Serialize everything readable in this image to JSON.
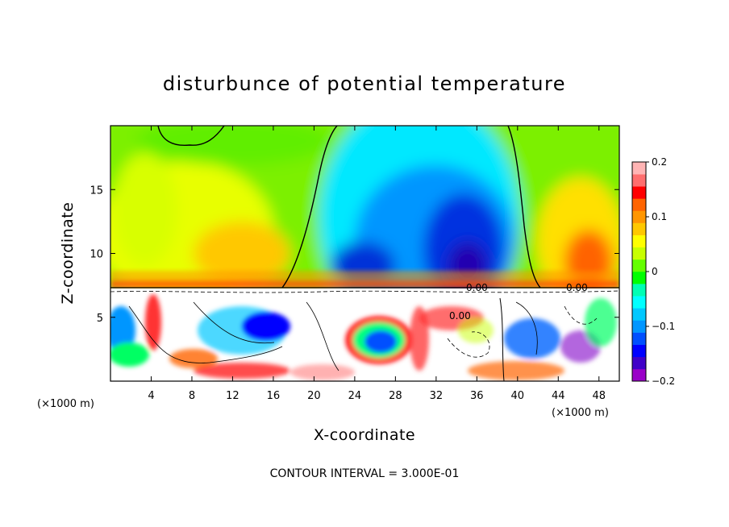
{
  "chart_data": {
    "type": "heatmap",
    "title": "disturbunce of potential temperature",
    "xlabel": "X-coordinate",
    "ylabel": "Z-coordinate",
    "x_unit": "(×1000 m)",
    "y_unit": "(×1000 m)",
    "xlim": [
      0,
      50
    ],
    "ylim": [
      0,
      20
    ],
    "x_ticks": [
      4,
      8,
      12,
      16,
      20,
      24,
      28,
      32,
      36,
      40,
      44,
      48
    ],
    "x_tick_labels": [
      "4",
      "8",
      "12",
      "16",
      "20",
      "24",
      "28",
      "32",
      "36",
      "40",
      "44",
      "48"
    ],
    "y_ticks": [
      5,
      10,
      15
    ],
    "y_tick_labels": [
      "5",
      "10",
      "15"
    ],
    "colorbar": {
      "range": [
        -0.2,
        0.2
      ],
      "ticks": [
        0.2,
        0.1,
        0,
        -0.1,
        -0.2
      ],
      "tick_labels": [
        "0.2",
        "0.1",
        "0",
        "−0.1",
        "−0.2"
      ],
      "colors": [
        "#9a00c8",
        "#4000c8",
        "#0000ff",
        "#0050ff",
        "#0096ff",
        "#00c8ff",
        "#00ffff",
        "#00ffb4",
        "#00ff00",
        "#64ff00",
        "#c8ff00",
        "#ffff00",
        "#ffc800",
        "#ff9600",
        "#ff6400",
        "#ff0000",
        "#ff6e6e",
        "#ffb4b4"
      ]
    },
    "contour_labels": [
      "0.00",
      "0.00",
      "0.00"
    ],
    "footnote": "CONTOUR INTERVAL = 3.000E-01",
    "grid": false,
    "legend_placement": "right"
  }
}
